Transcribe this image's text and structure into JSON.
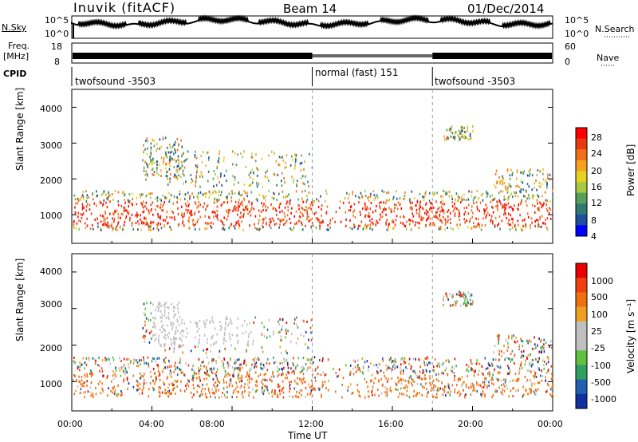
{
  "header": {
    "station": "Inuvik (fitACF)",
    "beam": "Beam 14",
    "date": "01/Dec/2014"
  },
  "top_panels": {
    "nsky_label": "N.Sky",
    "nsky_ticks": [
      "10^5",
      "10^0"
    ],
    "nsearch_label": "N.Search",
    "nsearch_ticks": [
      "10^5",
      "10^0"
    ],
    "freq_label_1": "Freq.",
    "freq_label_2": "[MHz]",
    "freq_ticks": [
      "18",
      "8"
    ],
    "nave_label": "Nave",
    "nave_ticks": [
      "60",
      "0"
    ],
    "cpid_label": "CPID",
    "cpid_segments": [
      {
        "label": "twofsound -3503",
        "start_hour": 0,
        "end_hour": 12
      },
      {
        "label": "normal (fast) 151",
        "start_hour": 12,
        "end_hour": 18
      },
      {
        "label": "twofsound -3503",
        "start_hour": 18,
        "end_hour": 24
      }
    ]
  },
  "chart_data": [
    {
      "type": "heatmap",
      "title": "",
      "xlabel": "",
      "ylabel": "Slant Range [km]",
      "xlim": [
        0,
        24
      ],
      "ylim": [
        200,
        4500
      ],
      "y_ticks": [
        "1000",
        "2000",
        "3000",
        "4000"
      ],
      "colorbar_label": "Power [dB]",
      "colorbar_ticks": [
        "28",
        "24",
        "20",
        "16",
        "12",
        "8",
        "4"
      ],
      "colorbar_colors": [
        "#0000ff",
        "#1e4ea0",
        "#2f7a70",
        "#55a05a",
        "#a8c840",
        "#e8d020",
        "#f8a020",
        "#f07018",
        "#e83a10",
        "#ff0000"
      ]
    },
    {
      "type": "heatmap",
      "title": "",
      "xlabel": "Time UT",
      "ylabel": "Slant Range [km]",
      "xlim": [
        0,
        24
      ],
      "ylim": [
        200,
        4500
      ],
      "x_ticks": [
        "00:00",
        "04:00",
        "08:00",
        "12:00",
        "16:00",
        "20:00",
        "00:00"
      ],
      "y_ticks": [
        "1000",
        "2000",
        "3000",
        "4000"
      ],
      "colorbar_label": "Velocity [m s⁻¹]",
      "colorbar_ticks": [
        "1000",
        "500",
        "100",
        "25",
        "-25",
        "-100",
        "-500",
        "-1000"
      ],
      "colorbar_colors": [
        "#1030a0",
        "#2060b0",
        "#30a060",
        "#60c040",
        "#c0c0c0",
        "#c0c0c0",
        "#f0a020",
        "#f07010",
        "#f04010",
        "#e80000"
      ]
    }
  ]
}
